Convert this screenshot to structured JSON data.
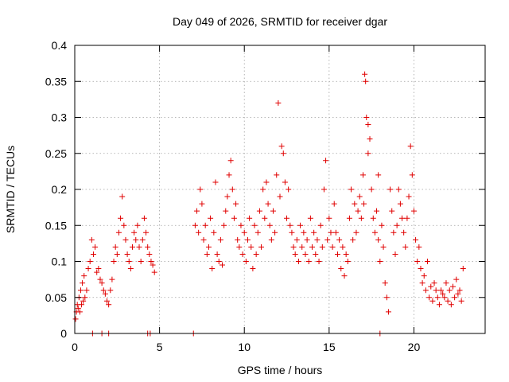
{
  "chart_data": {
    "type": "scatter",
    "title": "Day 049 of 2026, SRMTID for receiver dgar",
    "xlabel": "GPS time / hours",
    "ylabel": "SRMTID / TECUs",
    "xlim": [
      0,
      24.2
    ],
    "ylim": [
      0,
      0.4
    ],
    "xticks": [
      0,
      5,
      10,
      15,
      20
    ],
    "xtick_labels": [
      "0",
      "5",
      "10",
      "15",
      "20"
    ],
    "yticks": [
      0,
      0.05,
      0.1,
      0.15,
      0.2,
      0.25,
      0.3,
      0.35,
      0.4
    ],
    "ytick_labels": [
      "0",
      "0.05",
      "0.1",
      "0.15",
      "0.2",
      "0.25",
      "0.3",
      "0.35",
      "0.4"
    ],
    "grid": true,
    "marker": "+",
    "series_color": "#e00000",
    "series": [
      {
        "name": "SRMTID",
        "x": [
          0.05,
          0.1,
          0.15,
          0.2,
          0.25,
          0.3,
          0.35,
          0.4,
          0.45,
          0.5,
          0.55,
          0.6,
          0.7,
          0.8,
          0.9,
          1.0,
          1.1,
          1.2,
          1.3,
          1.4,
          1.5,
          1.6,
          1.7,
          1.8,
          1.9,
          2.0,
          2.1,
          2.2,
          2.3,
          2.4,
          2.5,
          2.6,
          2.7,
          2.8,
          2.9,
          3.0,
          3.1,
          3.2,
          3.3,
          3.4,
          3.5,
          3.6,
          3.7,
          3.8,
          3.9,
          4.0,
          4.1,
          4.2,
          4.3,
          4.4,
          4.5,
          4.6,
          4.7,
          1.05,
          1.6,
          2.0,
          4.3,
          4.45,
          7.0,
          7.1,
          7.2,
          7.3,
          7.4,
          7.5,
          7.6,
          7.7,
          7.8,
          7.9,
          8.0,
          8.1,
          8.2,
          8.3,
          8.4,
          8.5,
          8.6,
          8.7,
          8.8,
          8.9,
          9.0,
          9.1,
          9.2,
          9.3,
          9.4,
          9.5,
          9.6,
          9.7,
          9.8,
          9.9,
          10.0,
          10.1,
          10.2,
          10.3,
          10.4,
          10.5,
          10.6,
          10.7,
          10.8,
          10.9,
          11.0,
          11.1,
          11.2,
          11.3,
          11.4,
          11.5,
          11.6,
          11.7,
          11.8,
          11.9,
          12.0,
          12.1,
          12.2,
          12.3,
          12.4,
          12.5,
          12.6,
          12.7,
          12.8,
          12.9,
          13.0,
          13.1,
          13.2,
          13.3,
          13.4,
          13.5,
          13.6,
          13.7,
          13.8,
          13.9,
          14.0,
          14.1,
          14.2,
          14.3,
          14.4,
          14.5,
          14.6,
          14.7,
          14.8,
          14.9,
          15.0,
          15.1,
          15.2,
          15.3,
          15.4,
          15.5,
          15.6,
          15.7,
          15.8,
          15.9,
          16.0,
          16.1,
          16.2,
          16.3,
          16.4,
          16.5,
          16.6,
          16.7,
          16.8,
          16.9,
          17.0,
          17.05,
          17.1,
          17.15,
          17.2,
          17.3,
          17.4,
          17.5,
          17.6,
          17.7,
          17.8,
          17.9,
          18.0,
          18.1,
          18.2,
          18.3,
          18.4,
          18.5,
          18.6,
          18.7,
          18.8,
          18.9,
          19.0,
          19.1,
          19.2,
          19.3,
          19.4,
          19.5,
          19.6,
          19.7,
          19.8,
          19.9,
          20.0,
          20.1,
          20.2,
          20.3,
          20.4,
          20.5,
          20.6,
          20.7,
          20.8,
          20.9,
          21.0,
          21.1,
          21.2,
          21.3,
          21.4,
          21.5,
          21.6,
          21.7,
          21.8,
          21.9,
          22.0,
          22.1,
          22.2,
          22.3,
          22.4,
          22.5,
          22.6,
          22.7,
          22.8,
          22.9,
          17.3,
          17.9,
          18.0
        ],
        "y": [
          0.02,
          0.03,
          0.04,
          0.035,
          0.05,
          0.03,
          0.06,
          0.04,
          0.07,
          0.045,
          0.08,
          0.05,
          0.06,
          0.09,
          0.1,
          0.13,
          0.11,
          0.12,
          0.085,
          0.09,
          0.075,
          0.07,
          0.06,
          0.055,
          0.045,
          0.04,
          0.06,
          0.075,
          0.1,
          0.12,
          0.11,
          0.14,
          0.16,
          0.19,
          0.15,
          0.13,
          0.11,
          0.1,
          0.09,
          0.12,
          0.14,
          0.13,
          0.15,
          0.12,
          0.1,
          0.13,
          0.16,
          0.14,
          0.12,
          0.11,
          0.1,
          0.095,
          0.085,
          0.0,
          0.0,
          0.0,
          0.0,
          0.0,
          0.0,
          0.15,
          0.17,
          0.14,
          0.2,
          0.18,
          0.13,
          0.15,
          0.11,
          0.12,
          0.16,
          0.09,
          0.14,
          0.21,
          0.11,
          0.1,
          0.13,
          0.095,
          0.15,
          0.17,
          0.19,
          0.22,
          0.24,
          0.2,
          0.16,
          0.18,
          0.13,
          0.12,
          0.15,
          0.11,
          0.14,
          0.1,
          0.13,
          0.16,
          0.12,
          0.09,
          0.15,
          0.11,
          0.14,
          0.17,
          0.12,
          0.2,
          0.16,
          0.21,
          0.18,
          0.15,
          0.13,
          0.17,
          0.14,
          0.22,
          0.32,
          0.19,
          0.26,
          0.25,
          0.21,
          0.16,
          0.2,
          0.15,
          0.14,
          0.12,
          0.11,
          0.13,
          0.1,
          0.15,
          0.12,
          0.14,
          0.11,
          0.13,
          0.1,
          0.16,
          0.12,
          0.14,
          0.11,
          0.13,
          0.1,
          0.15,
          0.12,
          0.2,
          0.24,
          0.13,
          0.16,
          0.14,
          0.12,
          0.18,
          0.14,
          0.11,
          0.13,
          0.09,
          0.12,
          0.08,
          0.11,
          0.1,
          0.16,
          0.2,
          0.13,
          0.18,
          0.14,
          0.17,
          0.19,
          0.16,
          0.22,
          0.18,
          0.36,
          0.35,
          0.3,
          0.29,
          0.27,
          0.2,
          0.16,
          0.14,
          0.17,
          0.13,
          0.1,
          0.15,
          0.12,
          0.07,
          0.05,
          0.03,
          0.2,
          0.17,
          0.14,
          0.11,
          0.15,
          0.2,
          0.18,
          0.16,
          0.14,
          0.12,
          0.16,
          0.19,
          0.26,
          0.22,
          0.17,
          0.13,
          0.1,
          0.12,
          0.09,
          0.07,
          0.08,
          0.06,
          0.1,
          0.05,
          0.065,
          0.045,
          0.07,
          0.06,
          0.05,
          0.04,
          0.06,
          0.055,
          0.05,
          0.07,
          0.045,
          0.06,
          0.04,
          0.065,
          0.05,
          0.075,
          0.055,
          0.06,
          0.045,
          0.09,
          0.25,
          0.22,
          0.0
        ]
      }
    ]
  }
}
